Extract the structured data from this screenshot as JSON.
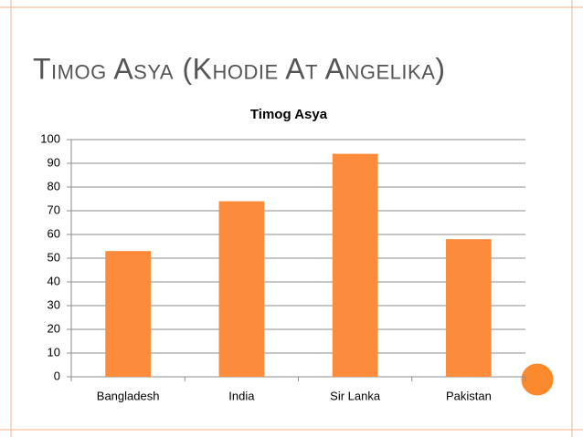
{
  "slide": {
    "title": "Timog Asya (Khodie At Angelika)"
  },
  "chart_data": {
    "type": "bar",
    "title": "Timog Asya",
    "categories": [
      "Bangladesh",
      "India",
      "Sir Lanka",
      "Pakistan"
    ],
    "values": [
      53,
      74,
      94,
      58
    ],
    "color": "#fd8b3c",
    "ylim": [
      0,
      100
    ],
    "yticks": [
      0,
      10,
      20,
      30,
      40,
      50,
      60,
      70,
      80,
      90,
      100
    ],
    "grid": true
  }
}
